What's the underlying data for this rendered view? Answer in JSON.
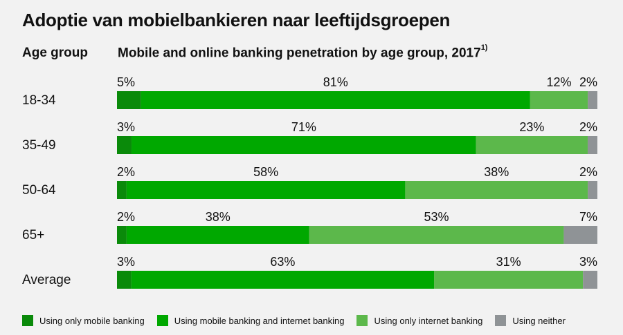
{
  "title": "Adoptie van mobielbankieren naar leeftijdsgroepen",
  "age_group_header": "Age group",
  "chart_header": "Mobile and online banking penetration by age group, 2017",
  "chart_header_footnote": "1)",
  "colors": {
    "only_mobile": "#0a8a0a",
    "mobile_and_internet": "#00a800",
    "only_internet": "#5cb84b",
    "neither": "#8f9396"
  },
  "chart_data": {
    "type": "bar",
    "stacked": true,
    "orientation": "horizontal",
    "categories": [
      "18-34",
      "35-49",
      "50-64",
      "65+",
      "Average"
    ],
    "series": [
      {
        "name": "Using only mobile banking",
        "values": [
          5,
          3,
          2,
          2,
          3
        ]
      },
      {
        "name": "Using mobile banking and internet banking",
        "values": [
          81,
          71,
          58,
          38,
          63
        ]
      },
      {
        "name": "Using only internet banking",
        "values": [
          12,
          23,
          38,
          53,
          31
        ]
      },
      {
        "name": "Using neither",
        "values": [
          2,
          2,
          2,
          7,
          3
        ]
      }
    ],
    "value_suffix": "%",
    "legend_position": "bottom"
  }
}
